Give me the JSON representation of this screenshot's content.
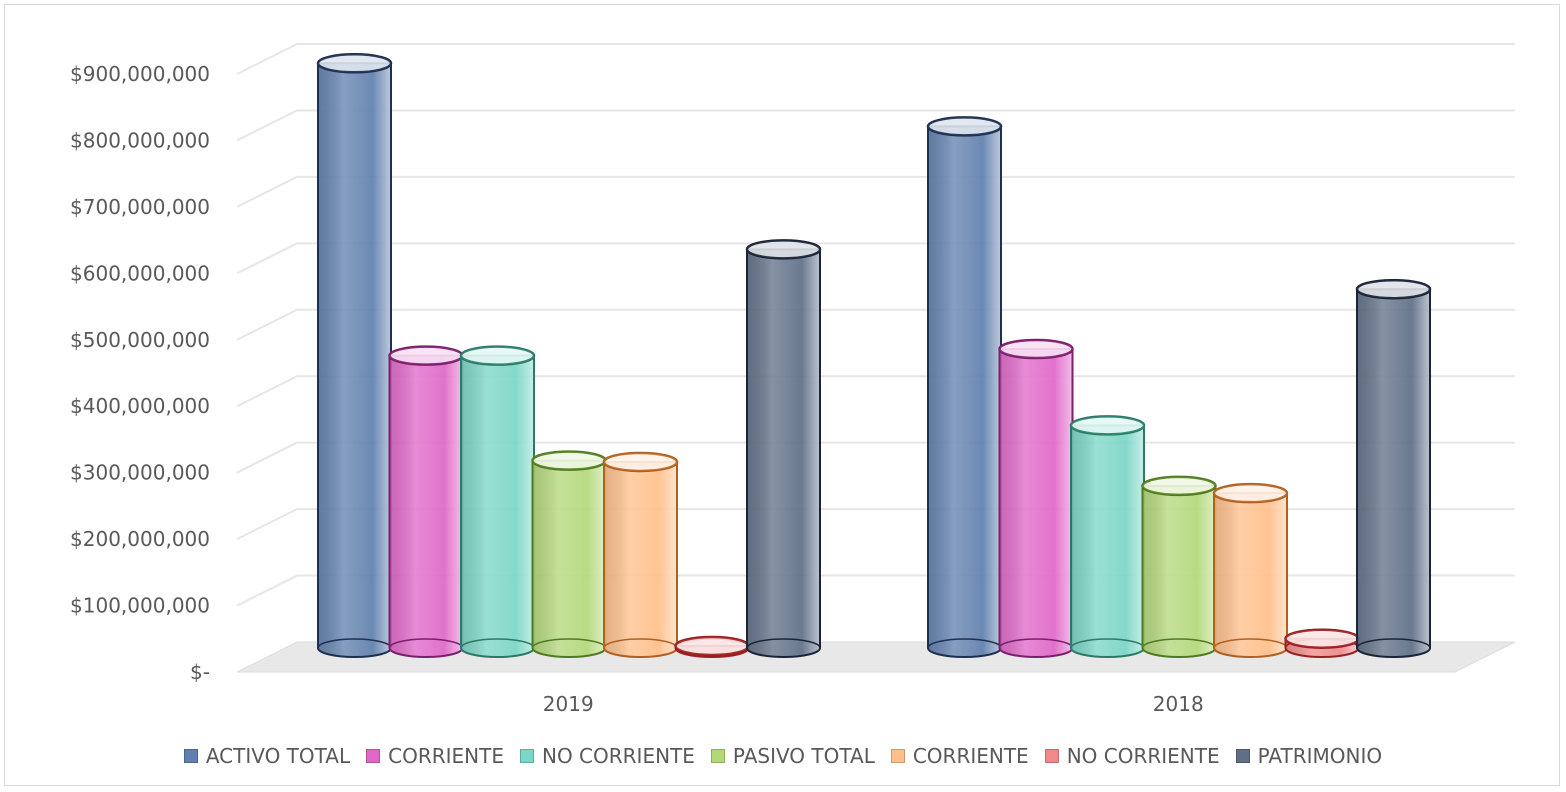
{
  "chart_data": {
    "type": "bar",
    "categories": [
      "2019",
      "2018"
    ],
    "series": [
      {
        "name": "ACTIVO TOTAL",
        "color": "#5f7fad",
        "edge": "#1f2f4f",
        "values": [
          880000000,
          785000000
        ]
      },
      {
        "name": "CORRIENTE",
        "color": "#e066c8",
        "edge": "#7a1f6b",
        "values": [
          440000000,
          450000000
        ]
      },
      {
        "name": "NO CORRIENTE",
        "color": "#7ad6c6",
        "edge": "#2a7a66",
        "values": [
          440000000,
          335000000
        ]
      },
      {
        "name": "PASIVO TOTAL",
        "color": "#b3d879",
        "edge": "#4f7a1f",
        "values": [
          282000000,
          244000000
        ]
      },
      {
        "name": "CORRIENTE",
        "color": "#ffbf8a",
        "edge": "#b06020",
        "values": [
          280000000,
          233000000
        ]
      },
      {
        "name": "NO CORRIENTE",
        "color": "#f08a8a",
        "edge": "#9a1f1f",
        "values": [
          3000000,
          14000000
        ]
      },
      {
        "name": "PATRIMONIO",
        "color": "#5e6f86",
        "edge": "#1b2536",
        "values": [
          600000000,
          540000000
        ]
      }
    ],
    "yticks": [
      "$-",
      "$100,000,000",
      "$200,000,000",
      "$300,000,000",
      "$400,000,000",
      "$500,000,000",
      "$600,000,000",
      "$700,000,000",
      "$800,000,000",
      "$900,000,000"
    ],
    "ylim": [
      0,
      900000000
    ],
    "grid": true,
    "legend_position": "bottom"
  }
}
